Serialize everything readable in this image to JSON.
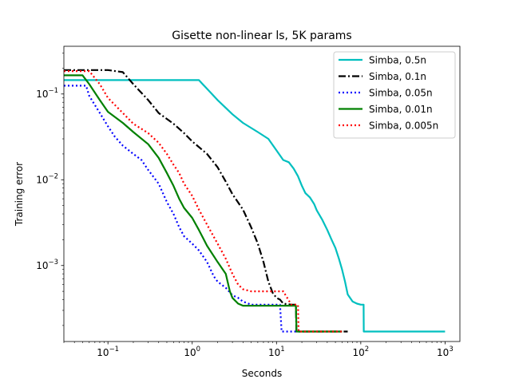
{
  "chart_data": {
    "type": "line",
    "title": "Gisette non-linear ls, 5K params",
    "xlabel": "Seconds",
    "ylabel": "Training error",
    "xscale": "log",
    "yscale": "log",
    "xlim": [
      0.03,
      1500
    ],
    "ylim": [
      0.00013,
      0.36
    ],
    "x_ticks": [
      {
        "value": 0.1,
        "base": "10",
        "exp": "−1"
      },
      {
        "value": 1,
        "base": "10",
        "exp": "0"
      },
      {
        "value": 10,
        "base": "10",
        "exp": "1"
      },
      {
        "value": 100,
        "base": "10",
        "exp": "2"
      },
      {
        "value": 1000,
        "base": "10",
        "exp": "3"
      }
    ],
    "y_ticks": [
      {
        "value": 0.001,
        "base": "10",
        "exp": "−3"
      },
      {
        "value": 0.01,
        "base": "10",
        "exp": "−2"
      },
      {
        "value": 0.1,
        "base": "10",
        "exp": "−1"
      }
    ],
    "legend_position": "top-right",
    "series": [
      {
        "name": "Simba, 0.5n",
        "color": "#00bfbf",
        "dash": "solid",
        "x": [
          0.03,
          0.5,
          1.0,
          1.2,
          1.5,
          2.0,
          3.0,
          4.0,
          6.0,
          8.0,
          10.0,
          12.0,
          14.0,
          16.0,
          18.0,
          20.0,
          22.0,
          25.0,
          28.0,
          30.0,
          35.0,
          40.0,
          45.0,
          50.0,
          55.0,
          60.0,
          65.0,
          70.0,
          80.0,
          90.0,
          100.0,
          105.0,
          108.0,
          108.5,
          150.0,
          300.0,
          400.0,
          600.0,
          1000.0
        ],
        "y": [
          0.145,
          0.145,
          0.145,
          0.145,
          0.115,
          0.085,
          0.058,
          0.046,
          0.036,
          0.03,
          0.022,
          0.017,
          0.016,
          0.0135,
          0.011,
          0.0085,
          0.007,
          0.0062,
          0.0052,
          0.0044,
          0.0034,
          0.0026,
          0.002,
          0.0016,
          0.0012,
          0.0009,
          0.00065,
          0.00046,
          0.00038,
          0.00036,
          0.00035,
          0.00035,
          0.00035,
          0.00017,
          0.00017,
          0.00017,
          0.00017,
          0.00017,
          0.00017
        ]
      },
      {
        "name": "Simba, 0.1n",
        "color": "#000000",
        "dash": "dashdot",
        "x": [
          0.03,
          0.1,
          0.15,
          0.2,
          0.3,
          0.4,
          0.6,
          0.8,
          1.0,
          1.5,
          2.0,
          2.5,
          3.0,
          4.0,
          5.0,
          6.0,
          7.0,
          8.0,
          9.0,
          10.0,
          11.0,
          12.0,
          15.0,
          17.0,
          17.2,
          25.0,
          40.0,
          60.0,
          70.0
        ],
        "y": [
          0.19,
          0.19,
          0.18,
          0.13,
          0.085,
          0.06,
          0.045,
          0.035,
          0.028,
          0.02,
          0.014,
          0.0095,
          0.0068,
          0.0045,
          0.0028,
          0.0018,
          0.0011,
          0.00065,
          0.00048,
          0.00042,
          0.0004,
          0.00036,
          0.00035,
          0.00035,
          0.00017,
          0.00017,
          0.00017,
          0.00017,
          0.00017
        ]
      },
      {
        "name": "Simba, 0.05n",
        "color": "#0000ff",
        "dash": "dotted",
        "x": [
          0.03,
          0.055,
          0.06,
          0.08,
          0.1,
          0.12,
          0.15,
          0.2,
          0.25,
          0.3,
          0.4,
          0.5,
          0.6,
          0.7,
          0.8,
          1.0,
          1.2,
          1.5,
          1.8,
          2.0,
          2.5,
          3.0,
          3.5,
          4.0,
          5.0,
          6.0,
          8.0,
          10.0,
          11.0,
          11.5,
          13.0,
          15.0,
          18.0,
          25.0,
          40.0,
          60.0
        ],
        "y": [
          0.125,
          0.125,
          0.095,
          0.06,
          0.042,
          0.032,
          0.025,
          0.02,
          0.017,
          0.013,
          0.009,
          0.0055,
          0.004,
          0.0028,
          0.0022,
          0.0018,
          0.0015,
          0.0011,
          0.00075,
          0.00065,
          0.00055,
          0.00045,
          0.00042,
          0.00038,
          0.00035,
          0.00035,
          0.00035,
          0.00035,
          0.00035,
          0.00017,
          0.00017,
          0.00017,
          0.00017,
          0.00017,
          0.00017,
          0.00017
        ]
      },
      {
        "name": "Simba, 0.01n",
        "color": "#008000",
        "dash": "solid",
        "x": [
          0.03,
          0.05,
          0.06,
          0.08,
          0.1,
          0.15,
          0.2,
          0.3,
          0.4,
          0.5,
          0.6,
          0.7,
          0.8,
          1.0,
          1.2,
          1.5,
          2.0,
          2.5,
          2.8,
          3.0,
          3.5,
          4.0,
          5.0,
          7.0,
          10.0,
          15.0,
          17.0,
          17.3,
          25.0,
          40.0,
          60.0
        ],
        "y": [
          0.165,
          0.165,
          0.13,
          0.085,
          0.062,
          0.046,
          0.036,
          0.026,
          0.018,
          0.012,
          0.0085,
          0.006,
          0.0047,
          0.0036,
          0.0026,
          0.0017,
          0.0011,
          0.0008,
          0.0005,
          0.00042,
          0.00036,
          0.00034,
          0.00034,
          0.00034,
          0.00034,
          0.00034,
          0.00034,
          0.00017,
          0.00017,
          0.00017,
          0.00017
        ]
      },
      {
        "name": "Simba, 0.005n",
        "color": "#ff0000",
        "dash": "dotted",
        "x": [
          0.03,
          0.06,
          0.08,
          0.1,
          0.15,
          0.2,
          0.3,
          0.4,
          0.5,
          0.6,
          0.7,
          0.8,
          1.0,
          1.2,
          1.5,
          2.0,
          2.5,
          3.0,
          3.5,
          4.0,
          5.0,
          7.0,
          10.0,
          12.0,
          15.0,
          17.0,
          18.0,
          18.3,
          25.0,
          40.0,
          60.0
        ],
        "y": [
          0.185,
          0.185,
          0.13,
          0.09,
          0.06,
          0.045,
          0.035,
          0.027,
          0.02,
          0.015,
          0.012,
          0.009,
          0.0065,
          0.0045,
          0.003,
          0.0018,
          0.0012,
          0.0008,
          0.0006,
          0.00053,
          0.0005,
          0.0005,
          0.0005,
          0.0005,
          0.00035,
          0.00035,
          0.00035,
          0.00017,
          0.00017,
          0.00017,
          0.00017
        ]
      }
    ]
  }
}
